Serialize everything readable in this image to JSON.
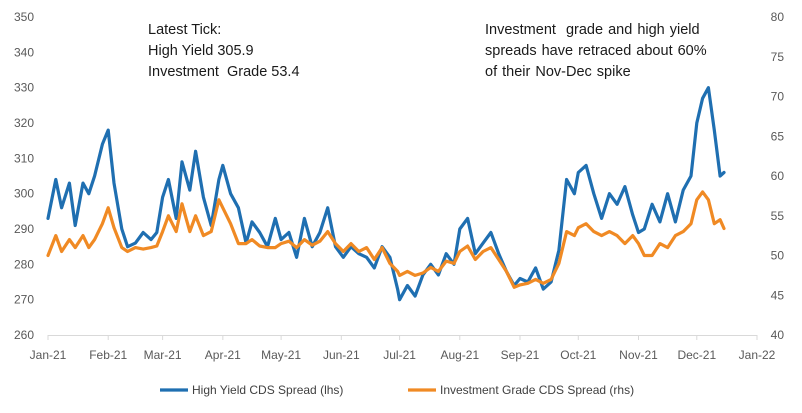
{
  "chart_data": {
    "type": "line",
    "grid": false,
    "legend_placement": "bottom",
    "x_ticks": [
      "Jan-21",
      "Feb-21",
      "Mar-21",
      "Apr-21",
      "May-21",
      "Jun-21",
      "Jul-21",
      "Aug-21",
      "Sep-21",
      "Oct-21",
      "Nov-21",
      "Dec-21",
      "Jan-22"
    ],
    "y_left": {
      "min": 260,
      "max": 350,
      "step": 10
    },
    "y_right": {
      "min": 40,
      "max": 80,
      "step": 5
    },
    "annotations": {
      "latest_tick": [
        "Latest Tick:",
        "High Yield 305.9",
        "Investment  Grade 53.4"
      ],
      "note": [
        "Investment  grade and high yield",
        "spreads have retraced about 60%",
        "of their Nov-Dec spike"
      ]
    },
    "series": [
      {
        "name": "High Yield CDS Spread (lhs)",
        "axis": "left",
        "color": "#1f6fb1",
        "x": [
          "2021-01-01",
          "2021-01-05",
          "2021-01-08",
          "2021-01-12",
          "2021-01-15",
          "2021-01-19",
          "2021-01-22",
          "2021-01-25",
          "2021-01-29",
          "2021-02-01",
          "2021-02-04",
          "2021-02-08",
          "2021-02-11",
          "2021-02-15",
          "2021-02-19",
          "2021-02-23",
          "2021-02-26",
          "2021-03-01",
          "2021-03-04",
          "2021-03-08",
          "2021-03-11",
          "2021-03-15",
          "2021-03-18",
          "2021-03-22",
          "2021-03-26",
          "2021-03-30",
          "2021-04-01",
          "2021-04-05",
          "2021-04-09",
          "2021-04-13",
          "2021-04-16",
          "2021-04-20",
          "2021-04-24",
          "2021-04-28",
          "2021-05-01",
          "2021-05-05",
          "2021-05-09",
          "2021-05-13",
          "2021-05-17",
          "2021-05-21",
          "2021-05-25",
          "2021-05-29",
          "2021-06-02",
          "2021-06-06",
          "2021-06-10",
          "2021-06-14",
          "2021-06-18",
          "2021-06-22",
          "2021-06-26",
          "2021-06-30",
          "2021-07-01",
          "2021-07-05",
          "2021-07-09",
          "2021-07-13",
          "2021-07-17",
          "2021-07-21",
          "2021-07-25",
          "2021-07-29",
          "2021-08-01",
          "2021-08-05",
          "2021-08-09",
          "2021-08-13",
          "2021-08-17",
          "2021-08-21",
          "2021-08-25",
          "2021-08-29",
          "2021-09-01",
          "2021-09-05",
          "2021-09-09",
          "2021-09-13",
          "2021-09-17",
          "2021-09-21",
          "2021-09-25",
          "2021-09-29",
          "2021-10-01",
          "2021-10-05",
          "2021-10-09",
          "2021-10-13",
          "2021-10-17",
          "2021-10-21",
          "2021-10-25",
          "2021-10-29",
          "2021-11-01",
          "2021-11-04",
          "2021-11-08",
          "2021-11-12",
          "2021-11-16",
          "2021-11-20",
          "2021-11-24",
          "2021-11-28",
          "2021-12-01",
          "2021-12-04",
          "2021-12-07",
          "2021-12-10",
          "2021-12-13",
          "2021-12-15"
        ],
        "values": [
          293,
          304,
          296,
          303,
          291,
          303,
          300,
          305,
          314,
          318,
          303,
          290,
          285,
          286,
          289,
          287,
          289,
          299,
          304,
          293,
          309,
          301,
          312,
          299,
          291,
          304,
          308,
          300,
          296,
          286,
          292,
          289,
          285,
          293,
          287,
          289,
          282,
          293,
          285,
          289,
          296,
          285,
          282,
          285,
          283,
          282,
          279,
          285,
          282,
          273,
          270,
          274,
          271,
          277,
          280,
          277,
          283,
          280,
          290,
          293,
          283,
          286,
          289,
          283,
          278,
          274,
          276,
          275,
          279,
          273,
          275,
          284,
          304,
          300,
          306,
          308,
          300,
          293,
          300,
          297,
          302,
          294,
          289,
          290,
          297,
          292,
          300,
          292,
          301,
          305,
          320,
          327,
          330,
          318,
          305,
          306
        ]
      },
      {
        "name": "Investment Grade CDS Spread (rhs)",
        "axis": "right",
        "color": "#f08a24",
        "x": [
          "2021-01-01",
          "2021-01-05",
          "2021-01-08",
          "2021-01-12",
          "2021-01-15",
          "2021-01-19",
          "2021-01-22",
          "2021-01-25",
          "2021-01-29",
          "2021-02-01",
          "2021-02-04",
          "2021-02-08",
          "2021-02-11",
          "2021-02-15",
          "2021-02-19",
          "2021-02-23",
          "2021-02-26",
          "2021-03-01",
          "2021-03-04",
          "2021-03-08",
          "2021-03-11",
          "2021-03-15",
          "2021-03-18",
          "2021-03-22",
          "2021-03-26",
          "2021-03-30",
          "2021-04-01",
          "2021-04-05",
          "2021-04-09",
          "2021-04-13",
          "2021-04-16",
          "2021-04-20",
          "2021-04-24",
          "2021-04-28",
          "2021-05-01",
          "2021-05-05",
          "2021-05-09",
          "2021-05-13",
          "2021-05-17",
          "2021-05-21",
          "2021-05-25",
          "2021-05-29",
          "2021-06-02",
          "2021-06-06",
          "2021-06-10",
          "2021-06-14",
          "2021-06-18",
          "2021-06-22",
          "2021-06-26",
          "2021-06-30",
          "2021-07-01",
          "2021-07-05",
          "2021-07-09",
          "2021-07-13",
          "2021-07-17",
          "2021-07-21",
          "2021-07-25",
          "2021-07-29",
          "2021-08-01",
          "2021-08-05",
          "2021-08-09",
          "2021-08-13",
          "2021-08-17",
          "2021-08-21",
          "2021-08-25",
          "2021-08-29",
          "2021-09-01",
          "2021-09-05",
          "2021-09-09",
          "2021-09-13",
          "2021-09-17",
          "2021-09-21",
          "2021-09-25",
          "2021-09-29",
          "2021-10-01",
          "2021-10-05",
          "2021-10-09",
          "2021-10-13",
          "2021-10-17",
          "2021-10-21",
          "2021-10-25",
          "2021-10-29",
          "2021-11-01",
          "2021-11-04",
          "2021-11-08",
          "2021-11-12",
          "2021-11-16",
          "2021-11-20",
          "2021-11-24",
          "2021-11-28",
          "2021-12-01",
          "2021-12-04",
          "2021-12-07",
          "2021-12-10",
          "2021-12-13",
          "2021-12-15"
        ],
        "values": [
          50,
          52.5,
          50.5,
          52,
          51,
          52.5,
          51,
          52,
          54,
          56,
          53.5,
          51,
          50.5,
          51,
          50.8,
          51,
          51.2,
          53,
          55,
          53,
          56.5,
          53,
          55,
          52.5,
          53,
          57,
          56,
          54,
          51.5,
          51.5,
          52,
          51.2,
          51,
          51,
          51.5,
          51.8,
          51,
          52,
          51.3,
          51.8,
          53,
          51.5,
          50.5,
          51.5,
          50.5,
          51,
          49.5,
          51,
          49,
          48,
          47.5,
          48,
          47.5,
          47.8,
          48.5,
          48,
          49.3,
          49,
          50.5,
          51.2,
          49.5,
          50.5,
          51,
          49.5,
          48,
          46,
          46.3,
          46.5,
          47,
          46.5,
          47,
          49,
          53,
          52.5,
          53.5,
          54,
          53,
          52.5,
          53,
          52.5,
          51.5,
          52.5,
          51.5,
          50,
          50,
          51.5,
          51,
          52.5,
          53,
          54,
          57,
          58,
          57,
          54,
          54.5,
          53.4
        ]
      }
    ]
  },
  "legend": {
    "items": [
      {
        "label": "High Yield CDS Spread (lhs)",
        "color": "#1f6fb1"
      },
      {
        "label": "Investment Grade CDS Spread (rhs)",
        "color": "#f08a24"
      }
    ]
  }
}
